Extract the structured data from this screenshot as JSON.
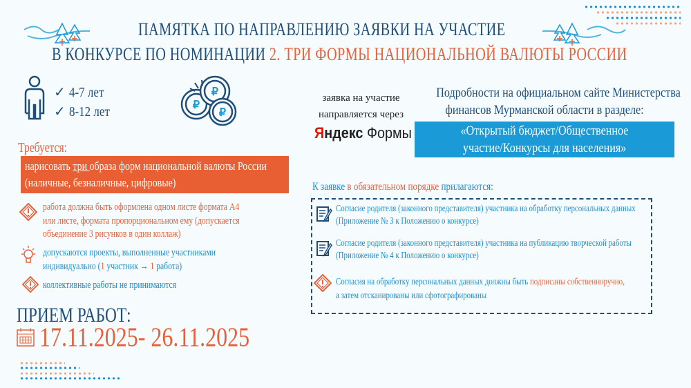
{
  "header": {
    "title_line1": "ПАМЯТКА ПО НАПРАВЛЕНИЮ ЗАЯВКИ НА УЧАСТИЕ",
    "title_line2_prefix": "В КОНКУРСЕ ПО НОМИНАЦИИ ",
    "title_line2_highlight": "2. ТРИ ФОРМЫ НАЦИОНАЛЬНОЙ ВАЛЮТЫ РОССИИ"
  },
  "ages": [
    "4-7 лет",
    "8-12 лет"
  ],
  "application": {
    "line1": "заявка на участие",
    "line2": "направляется через",
    "brand_red": "Я",
    "brand_bold": "ндекс",
    "brand_rest": " Формы"
  },
  "site": {
    "line1": "Подробности на официальном сайте Министерства",
    "line2": "финансов Мурманской области в разделе:",
    "box_line1": "«Открытый бюджет/Общественное",
    "box_line2": "участие/Конкурсы для населения»"
  },
  "required": {
    "label": "Требуется:",
    "text_before": "нарисовать ",
    "text_underlined": "три ",
    "text_after": "образа форм национальной валюты России",
    "line2": "(наличные, безналичные, цифровые)"
  },
  "rules": [
    {
      "icon": "warning-icon",
      "lines": [
        "работа должна быть оформлена одном листе формата А4",
        "или листе, формата пропорциональном ему (допускается",
        "объединение 3 рисунков в один коллаж)"
      ]
    },
    {
      "icon": "lightbulb-icon",
      "line1": "допускаются проекты, выполненные участниками",
      "line2_a": "индивидуально (",
      "one_a": "1",
      "line2_b": " участник → ",
      "one_b": "1",
      "line2_c": " работа)"
    },
    {
      "icon": "warning-icon",
      "lines": [
        "коллективные работы не принимаются"
      ]
    }
  ],
  "reception": {
    "label": "ПРИЕМ РАБОТ:",
    "dates": "17.11.2025- 26.11.2025"
  },
  "attachments": {
    "heading_a": "К заявке ",
    "heading_highlight": "в обязательном порядке",
    "heading_b": " прилагаются:",
    "items": [
      {
        "line1": "Согласие родителя (законного представителя) участника на обработку персональных данных",
        "line2": "(Приложение № 3 к Положению о конкурсе)"
      },
      {
        "line1": "Согласие родителя (законного представителя) участника на публикацию творческой работы",
        "line2": "(Приложение № 4 к Положению о конкурсе)"
      }
    ],
    "note_a": "Согласия на обработку персональных данных должны быть ",
    "note_highlight": "подписаны собственноручно,",
    "note_line2": "а затем отсканированы или сфотографированы"
  },
  "colors": {
    "navy": "#1f4e79",
    "orange": "#e8613a",
    "blue": "#1a9ad6"
  }
}
